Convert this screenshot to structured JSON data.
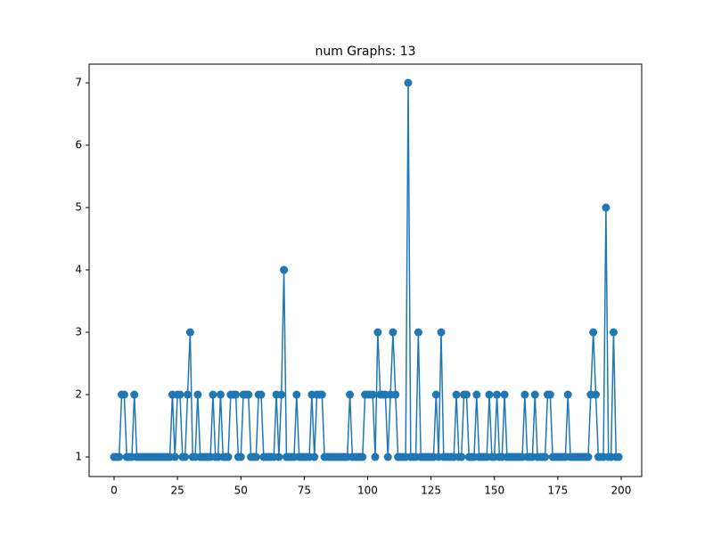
{
  "chart_data": {
    "type": "line",
    "title": "num Graphs: 13",
    "x": [
      0,
      1,
      2,
      3,
      4,
      5,
      6,
      7,
      8,
      9,
      10,
      11,
      12,
      13,
      14,
      15,
      16,
      17,
      18,
      19,
      20,
      21,
      22,
      23,
      24,
      25,
      26,
      27,
      28,
      29,
      30,
      31,
      32,
      33,
      34,
      35,
      36,
      37,
      38,
      39,
      40,
      41,
      42,
      43,
      44,
      45,
      46,
      47,
      48,
      49,
      50,
      51,
      52,
      53,
      54,
      55,
      56,
      57,
      58,
      59,
      60,
      61,
      62,
      63,
      64,
      65,
      66,
      67,
      68,
      69,
      70,
      71,
      72,
      73,
      74,
      75,
      76,
      77,
      78,
      79,
      80,
      81,
      82,
      83,
      84,
      85,
      86,
      87,
      88,
      89,
      90,
      91,
      92,
      93,
      94,
      95,
      96,
      97,
      98,
      99,
      100,
      101,
      102,
      103,
      104,
      105,
      106,
      107,
      108,
      109,
      110,
      111,
      112,
      113,
      114,
      115,
      116,
      117,
      118,
      119,
      120,
      121,
      122,
      123,
      124,
      125,
      126,
      127,
      128,
      129,
      130,
      131,
      132,
      133,
      134,
      135,
      136,
      137,
      138,
      139,
      140,
      141,
      142,
      143,
      144,
      145,
      146,
      147,
      148,
      149,
      150,
      151,
      152,
      153,
      154,
      155,
      156,
      157,
      158,
      159,
      160,
      161,
      162,
      163,
      164,
      165,
      166,
      167,
      168,
      169,
      170,
      171,
      172,
      173,
      174,
      175,
      176,
      177,
      178,
      179,
      180,
      181,
      182,
      183,
      184,
      185,
      186,
      187,
      188,
      189,
      190,
      191,
      192,
      193,
      194,
      195,
      196,
      197,
      198,
      199
    ],
    "series": [
      {
        "color": "#1f77b4",
        "values": [
          1,
          1,
          1,
          2,
          2,
          1,
          1,
          1,
          2,
          1,
          1,
          1,
          1,
          1,
          1,
          1,
          1,
          1,
          1,
          1,
          1,
          1,
          1,
          2,
          1,
          2,
          2,
          1,
          1,
          2,
          3,
          1,
          1,
          2,
          1,
          1,
          1,
          1,
          1,
          2,
          1,
          1,
          2,
          1,
          1,
          1,
          2,
          2,
          2,
          1,
          1,
          2,
          2,
          2,
          1,
          1,
          1,
          2,
          2,
          1,
          1,
          1,
          1,
          1,
          2,
          1,
          2,
          4,
          1,
          1,
          1,
          1,
          2,
          1,
          1,
          1,
          1,
          1,
          2,
          1,
          2,
          2,
          2,
          1,
          1,
          1,
          1,
          1,
          1,
          1,
          1,
          1,
          1,
          2,
          1,
          1,
          1,
          1,
          1,
          2,
          2,
          2,
          2,
          1,
          3,
          2,
          2,
          2,
          1,
          2,
          3,
          2,
          1,
          1,
          1,
          1,
          7,
          1,
          1,
          1,
          3,
          1,
          1,
          1,
          1,
          1,
          1,
          2,
          1,
          3,
          1,
          1,
          1,
          1,
          1,
          2,
          1,
          1,
          2,
          2,
          1,
          1,
          1,
          2,
          1,
          1,
          1,
          1,
          2,
          1,
          1,
          2,
          1,
          1,
          2,
          1,
          1,
          1,
          1,
          1,
          1,
          1,
          2,
          1,
          1,
          1,
          2,
          1,
          1,
          1,
          1,
          2,
          2,
          1,
          1,
          1,
          1,
          1,
          1,
          2,
          1,
          1,
          1,
          1,
          1,
          1,
          1,
          1,
          2,
          3,
          2,
          1,
          1,
          1,
          5,
          1,
          1,
          3,
          1,
          1
        ]
      }
    ],
    "xlim": [
      -9.84,
      208.1
    ],
    "ylim": [
      0.686,
      7.3
    ],
    "xticks": [
      0,
      25,
      50,
      75,
      100,
      125,
      150,
      175,
      200
    ],
    "yticks": [
      1,
      2,
      3,
      4,
      5,
      6,
      7
    ]
  }
}
